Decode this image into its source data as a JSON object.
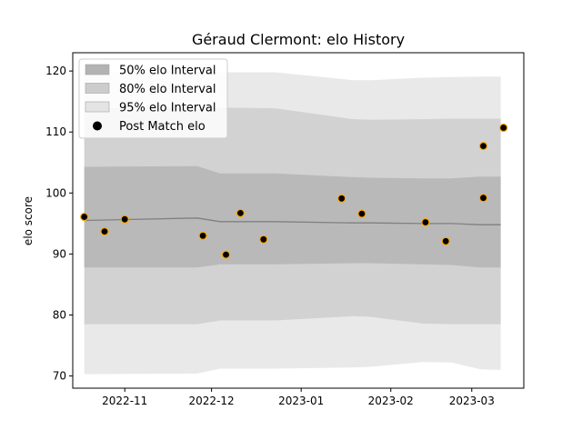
{
  "chart_data": {
    "type": "line",
    "title": "Géraud Clermont: elo History",
    "xlabel": "",
    "ylabel": "elo score",
    "xlim": [
      "2022-10-14",
      "2023-03-19"
    ],
    "ylim": [
      68,
      123
    ],
    "x_ticks": [
      "2022-11-01",
      "2022-12-01",
      "2023-01-01",
      "2023-02-01",
      "2023-03-01"
    ],
    "x_tick_labels": [
      "2022-11",
      "2022-12",
      "2023-01",
      "2023-02",
      "2023-03"
    ],
    "y_ticks": [
      70,
      80,
      90,
      100,
      110,
      120
    ],
    "y_tick_labels": [
      "70",
      "80",
      "90",
      "100",
      "110",
      "120"
    ],
    "grid": false,
    "legend_position": "upper-left",
    "legend": [
      "50% elo Interval",
      "80% elo Interval",
      "95% elo Interval",
      "Post Match elo"
    ],
    "colors": {
      "band50": "#b3b3b3",
      "band80": "#cccccc",
      "band95": "#e4e4e4",
      "mean_line": "#808080",
      "marker_fill": "#000000",
      "marker_edge": "#ffa500"
    },
    "band_x": [
      "2022-10-18",
      "2022-11-26",
      "2022-12-04",
      "2022-12-23",
      "2023-01-19",
      "2023-01-25",
      "2023-02-12",
      "2023-02-22",
      "2023-03-04",
      "2023-03-11"
    ],
    "mean": [
      95.5,
      95.9,
      95.3,
      95.3,
      95.1,
      95.1,
      95.0,
      95.0,
      94.8,
      94.8
    ],
    "band50": {
      "lower": [
        87.8,
        87.8,
        88.3,
        88.3,
        88.5,
        88.5,
        88.3,
        88.2,
        87.8,
        87.8
      ],
      "upper": [
        104.3,
        104.4,
        103.2,
        103.2,
        102.6,
        102.5,
        102.4,
        102.4,
        102.7,
        102.7
      ]
    },
    "band80": {
      "lower": [
        78.5,
        78.5,
        79.1,
        79.1,
        79.8,
        79.7,
        78.6,
        78.5,
        78.5,
        78.5
      ],
      "upper": [
        113.9,
        114.0,
        114.0,
        113.9,
        112.1,
        112.0,
        112.1,
        112.2,
        112.2,
        112.2
      ]
    },
    "band95": {
      "lower": [
        70.3,
        70.4,
        71.2,
        71.2,
        71.4,
        71.5,
        72.3,
        72.2,
        71.1,
        71.0
      ],
      "upper": [
        119.8,
        119.9,
        119.8,
        119.8,
        118.5,
        118.5,
        118.9,
        119.0,
        119.1,
        119.1
      ]
    },
    "points": [
      {
        "date": "2022-10-18",
        "elo": 96.1
      },
      {
        "date": "2022-10-25",
        "elo": 93.7
      },
      {
        "date": "2022-11-01",
        "elo": 95.7
      },
      {
        "date": "2022-11-28",
        "elo": 93.0
      },
      {
        "date": "2022-12-06",
        "elo": 89.9
      },
      {
        "date": "2022-12-11",
        "elo": 96.7
      },
      {
        "date": "2022-12-19",
        "elo": 92.4
      },
      {
        "date": "2023-01-15",
        "elo": 99.1
      },
      {
        "date": "2023-01-22",
        "elo": 96.6
      },
      {
        "date": "2023-02-13",
        "elo": 95.2
      },
      {
        "date": "2023-02-20",
        "elo": 92.1
      },
      {
        "date": "2023-03-05",
        "elo": 107.7
      },
      {
        "date": "2023-03-05",
        "elo": 99.2
      },
      {
        "date": "2023-03-12",
        "elo": 110.7
      }
    ]
  }
}
